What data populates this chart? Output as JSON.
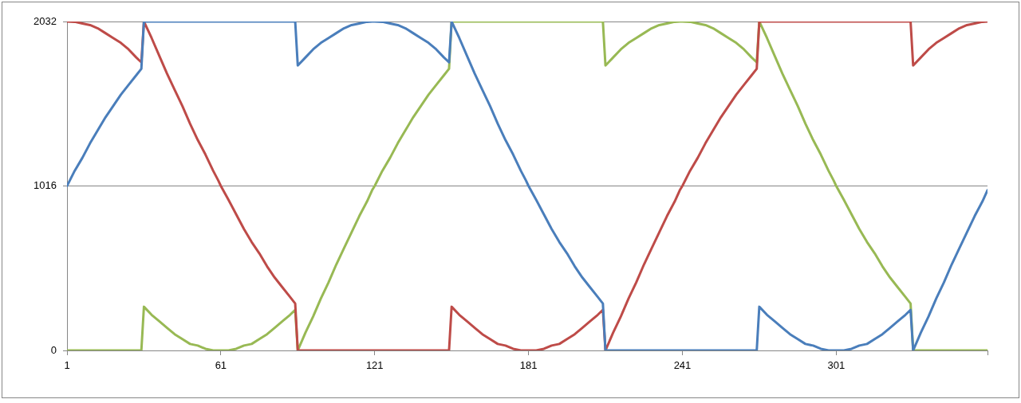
{
  "chart_data": {
    "type": "line",
    "x": [
      1,
      4,
      7,
      10,
      13,
      16,
      19,
      22,
      25,
      28,
      30,
      31,
      34,
      37,
      40,
      43,
      46,
      49,
      52,
      55,
      58,
      60,
      61,
      64,
      67,
      70,
      73,
      76,
      79,
      82,
      85,
      88,
      90,
      91,
      94,
      97,
      100,
      103,
      106,
      109,
      112,
      115,
      118,
      120,
      121,
      124,
      127,
      130,
      133,
      136,
      139,
      142,
      145,
      148,
      150,
      151,
      154,
      157,
      160,
      163,
      166,
      169,
      172,
      175,
      178,
      180,
      181,
      184,
      187,
      190,
      193,
      196,
      199,
      202,
      205,
      208,
      210,
      211,
      214,
      217,
      220,
      223,
      226,
      229,
      232,
      235,
      238,
      240,
      241,
      244,
      247,
      250,
      253,
      256,
      259,
      262,
      265,
      268,
      270,
      271,
      274,
      277,
      280,
      283,
      286,
      289,
      292,
      295,
      298,
      300,
      301,
      304,
      307,
      310,
      313,
      316,
      319,
      322,
      325,
      328,
      330,
      331,
      334,
      337,
      340,
      343,
      346,
      349,
      352,
      355,
      358,
      360
    ],
    "series": [
      {
        "color": "#4a7ebb",
        "values": [
          1016,
          1110,
          1190,
          1280,
          1360,
          1440,
          1510,
          1580,
          1640,
          1700,
          1740,
          2032,
          2032,
          2032,
          2032,
          2032,
          2032,
          2032,
          2032,
          2032,
          2032,
          2032,
          2032,
          2032,
          2032,
          2032,
          2032,
          2032,
          2032,
          2032,
          2032,
          2032,
          2032,
          1760,
          1810,
          1860,
          1900,
          1930,
          1960,
          1990,
          2010,
          2020,
          2030,
          2032,
          2032,
          2030,
          2020,
          2010,
          1990,
          1960,
          1930,
          1900,
          1860,
          1810,
          1780,
          2032,
          1930,
          1820,
          1710,
          1610,
          1510,
          1400,
          1300,
          1210,
          1110,
          1050,
          1016,
          930,
          840,
          750,
          670,
          600,
          520,
          450,
          390,
          330,
          290,
          0,
          0,
          0,
          0,
          0,
          0,
          0,
          0,
          0,
          0,
          0,
          0,
          0,
          0,
          0,
          0,
          0,
          0,
          0,
          0,
          0,
          0,
          270,
          220,
          180,
          140,
          100,
          70,
          40,
          30,
          10,
          0,
          0,
          0,
          0,
          10,
          30,
          40,
          70,
          100,
          140,
          180,
          220,
          250,
          0,
          110,
          210,
          320,
          420,
          530,
          630,
          730,
          830,
          920,
          990
        ]
      },
      {
        "color": "#be4b48",
        "values": [
          2032,
          2030,
          2020,
          2010,
          1990,
          1960,
          1930,
          1900,
          1860,
          1810,
          1780,
          2032,
          1930,
          1820,
          1710,
          1610,
          1510,
          1400,
          1300,
          1210,
          1110,
          1050,
          1016,
          930,
          840,
          750,
          670,
          600,
          520,
          450,
          390,
          330,
          290,
          0,
          0,
          0,
          0,
          0,
          0,
          0,
          0,
          0,
          0,
          0,
          0,
          0,
          0,
          0,
          0,
          0,
          0,
          0,
          0,
          0,
          0,
          270,
          220,
          180,
          140,
          100,
          70,
          40,
          30,
          10,
          0,
          0,
          0,
          0,
          10,
          30,
          40,
          70,
          100,
          140,
          180,
          220,
          250,
          0,
          110,
          210,
          320,
          420,
          530,
          630,
          730,
          830,
          920,
          990,
          1016,
          1110,
          1190,
          1280,
          1360,
          1440,
          1510,
          1580,
          1640,
          1700,
          1740,
          2032,
          2032,
          2032,
          2032,
          2032,
          2032,
          2032,
          2032,
          2032,
          2032,
          2032,
          2032,
          2032,
          2032,
          2032,
          2032,
          2032,
          2032,
          2032,
          2032,
          2032,
          2032,
          1760,
          1810,
          1860,
          1900,
          1930,
          1960,
          1990,
          2010,
          2020,
          2030,
          2032
        ]
      },
      {
        "color": "#98b954",
        "values": [
          0,
          0,
          0,
          0,
          0,
          0,
          0,
          0,
          0,
          0,
          0,
          270,
          220,
          180,
          140,
          100,
          70,
          40,
          30,
          10,
          0,
          0,
          0,
          0,
          10,
          30,
          40,
          70,
          100,
          140,
          180,
          220,
          250,
          0,
          110,
          210,
          320,
          420,
          530,
          630,
          730,
          830,
          920,
          990,
          1016,
          1110,
          1190,
          1280,
          1360,
          1440,
          1510,
          1580,
          1640,
          1700,
          1740,
          2032,
          2032,
          2032,
          2032,
          2032,
          2032,
          2032,
          2032,
          2032,
          2032,
          2032,
          2032,
          2032,
          2032,
          2032,
          2032,
          2032,
          2032,
          2032,
          2032,
          2032,
          2032,
          1760,
          1810,
          1860,
          1900,
          1930,
          1960,
          1990,
          2010,
          2020,
          2030,
          2032,
          2032,
          2030,
          2020,
          2010,
          1990,
          1960,
          1930,
          1900,
          1860,
          1810,
          1780,
          2032,
          1930,
          1820,
          1710,
          1610,
          1510,
          1400,
          1300,
          1210,
          1110,
          1050,
          1016,
          930,
          840,
          750,
          670,
          600,
          520,
          450,
          390,
          330,
          290,
          0,
          0,
          0,
          0,
          0,
          0,
          0,
          0,
          0,
          0,
          0
        ]
      }
    ],
    "xlim": [
      1,
      360
    ],
    "xticks": [
      1,
      61,
      121,
      181,
      241,
      301,
      {
        "value": 360,
        "label": null
      }
    ],
    "ylim": [
      0,
      2032
    ],
    "yticks": [
      0,
      1016,
      2032
    ],
    "grid": "y",
    "legend": false,
    "marker": "none",
    "line_style": "solid"
  }
}
